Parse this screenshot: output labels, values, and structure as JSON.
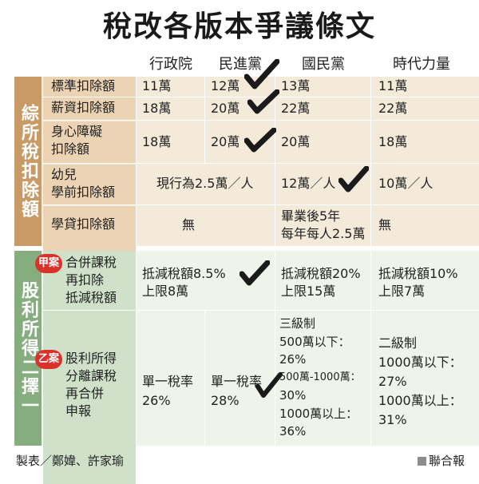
{
  "title": "稅改各版本爭議條文",
  "columns": [
    "行政院",
    "民進黨",
    "國民黨",
    "時代力量"
  ],
  "sections": {
    "deductions": "綜所稅扣除額",
    "dividend": "股利所得二擇一"
  },
  "rows": {
    "standard": {
      "label": "標準扣除額",
      "exec": "11萬",
      "dpp": "12萬",
      "kmt": "13萬",
      "npp": "11萬"
    },
    "salary": {
      "label": "薪資扣除額",
      "exec": "18萬",
      "dpp": "20萬",
      "kmt": "22萬",
      "npp": "22萬"
    },
    "disability": {
      "label1": "身心障礙",
      "label2": "扣除額",
      "exec": "18萬",
      "dpp": "20萬",
      "kmt": "20萬",
      "npp": "18萬"
    },
    "preschool": {
      "label1": "幼兒",
      "label2": "學前扣除額",
      "exec_dpp": "現行為2.5萬／人",
      "kmt": "12萬／人",
      "npp": "10萬／人"
    },
    "student_loan": {
      "label": "學貸扣除額",
      "exec_dpp": "無",
      "kmt1": "畢業後5年",
      "kmt2": "每年每人2.5萬",
      "npp": "無"
    },
    "plan_a": {
      "badge": "甲案",
      "label1": "合併課稅",
      "label2": "再扣除",
      "label3": "抵減稅額",
      "exec_dpp1": "抵減稅額8.5%",
      "exec_dpp2": "上限8萬",
      "kmt1": "抵減稅額20%",
      "kmt2": "上限15萬",
      "npp1": "抵減稅額10%",
      "npp2": "上限7萬"
    },
    "plan_b": {
      "badge": "乙案",
      "label1": "股利所得",
      "label2": "分離課稅",
      "label3": "再合併",
      "label4": "申報",
      "exec1": "單一稅率",
      "exec2": "26%",
      "dpp1": "單一稅率",
      "dpp2": "28%",
      "kmt1": "三級制",
      "kmt2": "500萬以下：",
      "kmt3": "26%",
      "kmt4": "500萬-1000萬：",
      "kmt5": "30%",
      "kmt6": "1000萬以上：",
      "kmt7": "36%",
      "npp1": "二級制",
      "npp2": "1000萬以下：",
      "npp3": "27%",
      "npp4": "1000萬以上：",
      "npp5": "31%"
    }
  },
  "footer": {
    "credit": "製表／鄭媁、許家瑜",
    "source": "聯合報"
  },
  "colors": {
    "deduction_side": "#c79a66",
    "dividend_side": "#85ad7e",
    "badge": "#d8322b",
    "check": "#1a1a1a"
  }
}
